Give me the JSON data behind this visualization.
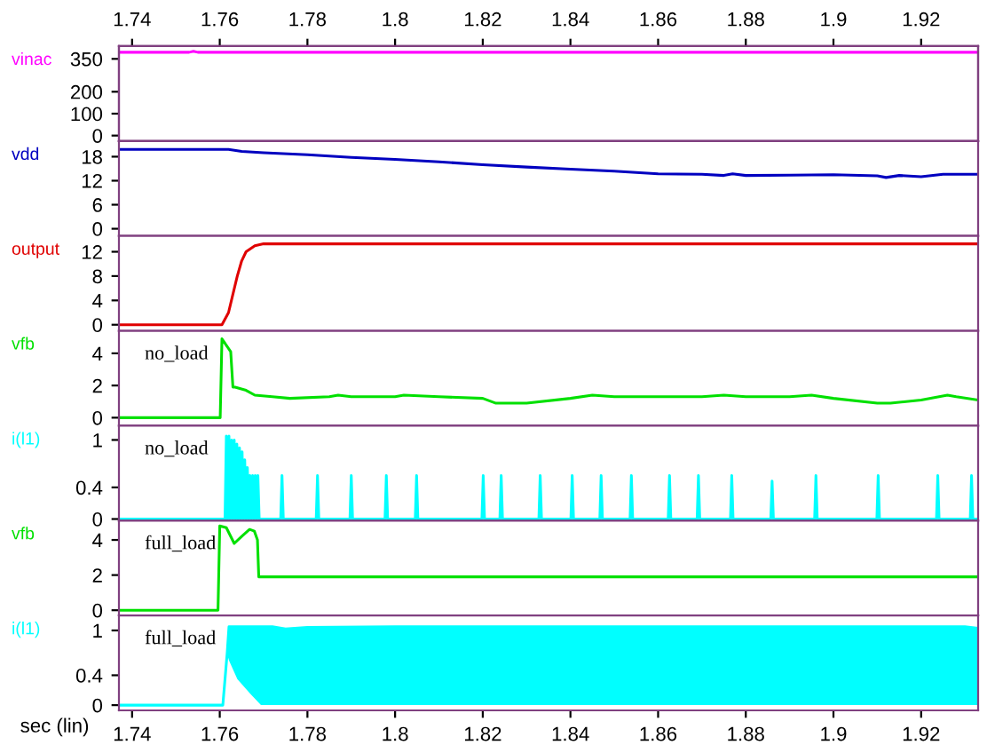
{
  "chart_data": [
    {
      "type": "line",
      "xlim": [
        1.737,
        1.933
      ],
      "xticks": [
        1.74,
        1.76,
        1.78,
        1.8,
        1.82,
        1.84,
        1.86,
        1.88,
        1.9,
        1.92
      ],
      "x2lim": [
        1.737,
        1.933
      ],
      "x2ticks": [
        1.74,
        1.76,
        1.78,
        1.8,
        1.82,
        1.84,
        1.86,
        1.88,
        1.9,
        1.92
      ],
      "ylim": [
        -25,
        408
      ],
      "yticks": [
        0,
        100,
        200,
        350
      ],
      "tick_labels": "y",
      "grid": false,
      "legend": false,
      "series": [
        {
          "name": "vinac",
          "color": "#ff00ff",
          "x": [
            1.737,
            1.753,
            1.754,
            1.755,
            1.933
          ],
          "values": [
            380,
            380,
            385,
            380,
            380
          ]
        }
      ]
    },
    {
      "type": "line",
      "xlim": [
        1.737,
        1.933
      ],
      "xticks": [
        1.74,
        1.76,
        1.78,
        1.8,
        1.82,
        1.84,
        1.86,
        1.88,
        1.9,
        1.92
      ],
      "ylim": [
        -1.8,
        21.9
      ],
      "yticks": [
        0,
        6,
        12,
        18
      ],
      "tick_labels": "y",
      "grid": false,
      "legend": false,
      "series": [
        {
          "name": "vdd",
          "color": "#0000c0",
          "x": [
            1.737,
            1.762,
            1.765,
            1.77,
            1.78,
            1.79,
            1.8,
            1.81,
            1.82,
            1.83,
            1.84,
            1.85,
            1.86,
            1.87,
            1.875,
            1.877,
            1.88,
            1.89,
            1.9,
            1.91,
            1.912,
            1.915,
            1.92,
            1.925,
            1.933
          ],
          "values": [
            19.8,
            19.8,
            19.3,
            19.0,
            18.5,
            17.8,
            17.3,
            16.7,
            16.0,
            15.4,
            14.9,
            14.4,
            13.7,
            13.6,
            13.3,
            13.7,
            13.3,
            13.4,
            13.5,
            13.2,
            12.8,
            13.3,
            13.0,
            13.6,
            13.6
          ]
        }
      ]
    },
    {
      "type": "line",
      "xlim": [
        1.737,
        1.933
      ],
      "xticks": [
        1.74,
        1.76,
        1.78,
        1.8,
        1.82,
        1.84,
        1.86,
        1.88,
        1.9,
        1.92
      ],
      "ylim": [
        -1.0,
        14.6
      ],
      "yticks": [
        0,
        4,
        8,
        12
      ],
      "tick_labels": "y",
      "grid": false,
      "legend": false,
      "series": [
        {
          "name": "output",
          "color": "#e00000",
          "x": [
            1.737,
            1.7605,
            1.762,
            1.763,
            1.764,
            1.765,
            1.766,
            1.768,
            1.77,
            1.933
          ],
          "values": [
            0,
            0,
            2,
            5,
            8,
            10.5,
            12,
            13,
            13.3,
            13.3
          ]
        }
      ]
    },
    {
      "type": "line",
      "xlim": [
        1.737,
        1.933
      ],
      "xticks": [
        1.74,
        1.76,
        1.78,
        1.8,
        1.82,
        1.84,
        1.86,
        1.88,
        1.9,
        1.92
      ],
      "ylim": [
        -0.5,
        5.4
      ],
      "yticks": [
        0,
        2,
        4
      ],
      "tick_labels": "y",
      "grid": false,
      "legend": false,
      "annotations": [
        "no_load"
      ],
      "series": [
        {
          "name": "vfb",
          "color": "#00e000",
          "x": [
            1.737,
            1.7601,
            1.7605,
            1.7615,
            1.7625,
            1.763,
            1.7635,
            1.766,
            1.768,
            1.772,
            1.776,
            1.785,
            1.787,
            1.79,
            1.8,
            1.802,
            1.81,
            1.82,
            1.823,
            1.83,
            1.84,
            1.845,
            1.85,
            1.86,
            1.87,
            1.875,
            1.88,
            1.89,
            1.895,
            1.9,
            1.91,
            1.913,
            1.92,
            1.926,
            1.928,
            1.933
          ],
          "values": [
            0,
            0,
            4.9,
            4.5,
            4.1,
            1.9,
            1.9,
            1.7,
            1.4,
            1.3,
            1.2,
            1.3,
            1.4,
            1.3,
            1.3,
            1.4,
            1.3,
            1.2,
            0.9,
            0.9,
            1.2,
            1.4,
            1.3,
            1.3,
            1.3,
            1.4,
            1.3,
            1.3,
            1.4,
            1.2,
            0.9,
            0.9,
            1.1,
            1.4,
            1.3,
            1.1
          ]
        }
      ]
    },
    {
      "type": "line",
      "xlim": [
        1.737,
        1.933
      ],
      "xticks": [
        1.74,
        1.76,
        1.78,
        1.8,
        1.82,
        1.84,
        1.86,
        1.88,
        1.9,
        1.92
      ],
      "ylim": [
        -0.02,
        1.18
      ],
      "yticks": [
        0,
        0.4,
        1
      ],
      "tick_labels": "y",
      "grid": false,
      "legend": false,
      "annotations": [
        "no_load"
      ],
      "series": [
        {
          "name": "i(l1)",
          "color": "#00ffff",
          "x": [
            1.737,
            1.7612,
            1.7615,
            1.7618,
            1.7621,
            1.7624,
            1.7627,
            1.763,
            1.7633,
            1.7636,
            1.7639,
            1.7642,
            1.7645,
            1.7648,
            1.7651,
            1.7654,
            1.7657,
            1.766,
            1.7663,
            1.7666,
            1.7669,
            1.7672,
            1.7675,
            1.7678,
            1.7681,
            1.7684,
            1.7687,
            1.769,
            1.7739,
            1.7742,
            1.7745,
            1.782,
            1.7823,
            1.7826,
            1.7897,
            1.79,
            1.7903,
            1.7977,
            1.798,
            1.7983,
            1.8046,
            1.8049,
            1.8052,
            1.8198,
            1.8201,
            1.8204,
            1.8239,
            1.8242,
            1.8245,
            1.8328,
            1.8331,
            1.8334,
            1.8401,
            1.8404,
            1.8407,
            1.8467,
            1.847,
            1.8473,
            1.8536,
            1.8539,
            1.8542,
            1.8623,
            1.8626,
            1.8629,
            1.8689,
            1.8692,
            1.8695,
            1.8765,
            1.8768,
            1.8771,
            1.8857,
            1.886,
            1.8863,
            1.8957,
            1.896,
            1.8963,
            1.9099,
            1.9102,
            1.9105,
            1.9235,
            1.9238,
            1.9241,
            1.9312,
            1.9315,
            1.9318,
            1.933
          ],
          "values": [
            0,
            0,
            1.05,
            0,
            1.05,
            0,
            1.0,
            0,
            1.0,
            0,
            0.95,
            0,
            0.9,
            0,
            0.85,
            0,
            0.75,
            0,
            0.65,
            0,
            0.55,
            0,
            0.55,
            0,
            0.55,
            0,
            0.55,
            0,
            0,
            0.55,
            0,
            0,
            0.55,
            0,
            0,
            0.55,
            0,
            0,
            0.55,
            0,
            0,
            0.55,
            0,
            0,
            0.55,
            0,
            0,
            0.55,
            0,
            0,
            0.55,
            0,
            0,
            0.55,
            0,
            0,
            0.55,
            0,
            0,
            0.55,
            0,
            0,
            0.55,
            0,
            0,
            0.55,
            0,
            0,
            0.55,
            0,
            0,
            0.48,
            0,
            0,
            0.55,
            0,
            0,
            0.55,
            0,
            0,
            0.55,
            0,
            0,
            0.55,
            0,
            0
          ]
        }
      ]
    },
    {
      "type": "line",
      "xlim": [
        1.737,
        1.933
      ],
      "xticks": [
        1.74,
        1.76,
        1.78,
        1.8,
        1.82,
        1.84,
        1.86,
        1.88,
        1.9,
        1.92
      ],
      "ylim": [
        -0.3,
        5.1
      ],
      "yticks": [
        0,
        2,
        4
      ],
      "tick_labels": "y",
      "grid": false,
      "legend": false,
      "annotations": [
        "full_load"
      ],
      "series": [
        {
          "name": "vfb",
          "color": "#00e000",
          "x": [
            1.737,
            1.7596,
            1.76,
            1.7615,
            1.7633,
            1.765,
            1.7668,
            1.7679,
            1.7686,
            1.7689,
            1.933
          ],
          "values": [
            0,
            0,
            4.8,
            4.7,
            3.8,
            4.2,
            4.6,
            4.5,
            4.0,
            1.9,
            1.9
          ]
        }
      ]
    },
    {
      "type": "line",
      "xlim": [
        1.737,
        1.933
      ],
      "xticks": [
        1.74,
        1.76,
        1.78,
        1.8,
        1.82,
        1.84,
        1.86,
        1.88,
        1.9,
        1.92
      ],
      "ylim": [
        -0.07,
        1.2
      ],
      "yticks": [
        0,
        0.4,
        1
      ],
      "xlabel": "sec (lin)",
      "grid": false,
      "legend": false,
      "annotations": [
        "full_load"
      ],
      "series": [
        {
          "name": "i(l1)",
          "color": "#00ffff",
          "x": [
            1.737,
            1.7607,
            1.7617,
            1.7621,
            1.764,
            1.767,
            1.7694,
            1.772,
            1.775,
            1.78,
            1.8,
            1.85,
            1.9,
            1.93,
            1.933
          ],
          "values": [
            0,
            0,
            0.7,
            1.05,
            1.05,
            1.05,
            1.05,
            1.05,
            1.02,
            1.04,
            1.05,
            1.05,
            1.05,
            1.05,
            1.03
          ],
          "lower": [
            0,
            0,
            0.68,
            0.6,
            0.35,
            0.15,
            0,
            0,
            0,
            0,
            0,
            0,
            0,
            0,
            0
          ],
          "upper": [
            0,
            0,
            0.7,
            1.05,
            1.05,
            1.05,
            1.05,
            1.05,
            1.02,
            1.04,
            1.05,
            1.05,
            1.05,
            1.05,
            1.03
          ]
        }
      ]
    }
  ]
}
